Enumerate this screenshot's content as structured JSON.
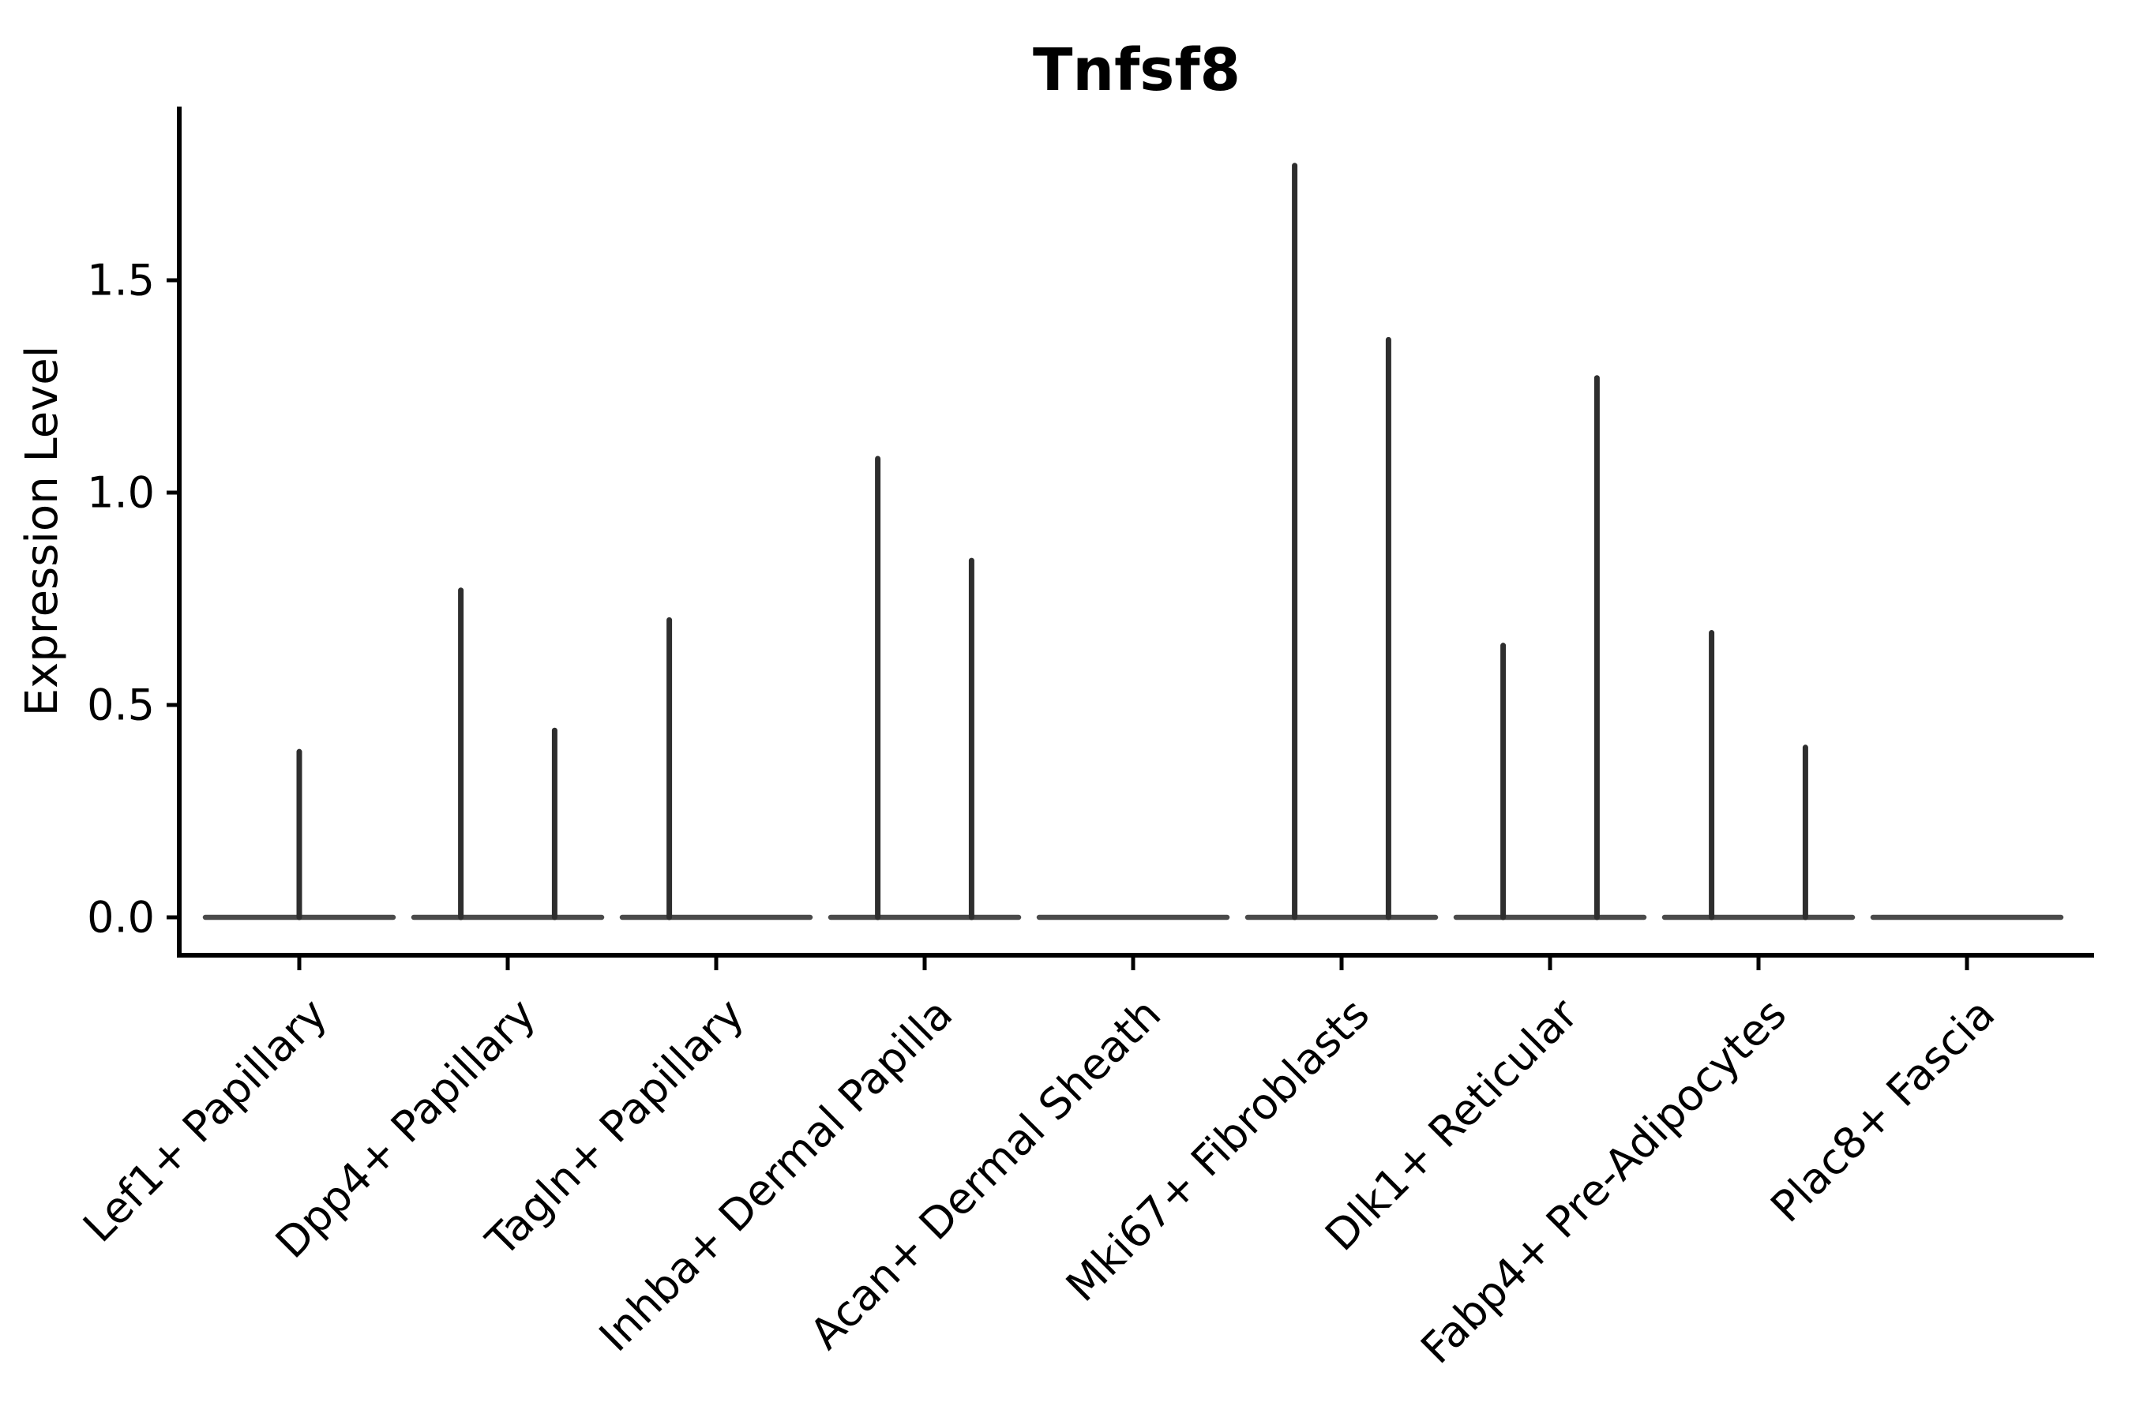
{
  "figure": {
    "background": "#ffffff"
  },
  "chart_data": {
    "type": "violin",
    "title": "Tnfsf8",
    "ylabel": "Expression Level",
    "xlabel": "",
    "legend_position": "none",
    "grid": false,
    "spines": [
      "left",
      "bottom"
    ],
    "ylim": [
      -0.09,
      1.91
    ],
    "yticks": [
      0.0,
      0.5,
      1.0,
      1.5
    ],
    "ytick_labels": [
      "0.0",
      "0.5",
      "1.0",
      "1.5"
    ],
    "categories": [
      "Lef1+ Papillary",
      "Dpp4+ Papillary",
      "Tagln+ Papillary",
      "Inhba+ Dermal Papilla",
      "Acan+ Dermal Sheath",
      "Mki67+ Fibroblasts",
      "Dlk1+ Reticular",
      "Fabp4+ Pre-Adipocytes",
      "Plac8+ Fascia"
    ],
    "violins": [
      {
        "category": "Lef1+ Papillary",
        "baseline_at_zero": true,
        "spikes": [
          {
            "offset": 0.0,
            "max": 0.39
          }
        ]
      },
      {
        "category": "Dpp4+ Papillary",
        "baseline_at_zero": true,
        "spikes": [
          {
            "offset": -0.225,
            "max": 0.77
          },
          {
            "offset": 0.225,
            "max": 0.44
          }
        ]
      },
      {
        "category": "Tagln+ Papillary",
        "baseline_at_zero": true,
        "spikes": [
          {
            "offset": -0.225,
            "max": 0.7
          }
        ]
      },
      {
        "category": "Inhba+ Dermal Papilla",
        "baseline_at_zero": true,
        "spikes": [
          {
            "offset": -0.225,
            "max": 1.08
          },
          {
            "offset": 0.225,
            "max": 0.84
          }
        ]
      },
      {
        "category": "Acan+ Dermal Sheath",
        "baseline_at_zero": true,
        "spikes": []
      },
      {
        "category": "Mki67+ Fibroblasts",
        "baseline_at_zero": true,
        "spikes": [
          {
            "offset": -0.225,
            "max": 1.77
          },
          {
            "offset": 0.225,
            "max": 1.36
          }
        ]
      },
      {
        "category": "Dlk1+ Reticular",
        "baseline_at_zero": true,
        "spikes": [
          {
            "offset": -0.225,
            "max": 0.64
          },
          {
            "offset": 0.225,
            "max": 1.27
          }
        ]
      },
      {
        "category": "Fabp4+ Pre-Adipocytes",
        "baseline_at_zero": true,
        "spikes": [
          {
            "offset": -0.225,
            "max": 0.67
          },
          {
            "offset": 0.225,
            "max": 0.4
          }
        ]
      },
      {
        "category": "Plac8+ Fascia",
        "baseline_at_zero": true,
        "spikes": []
      }
    ],
    "colors": {
      "spike": "#2e2e2e",
      "baseline": "#4a4a4a",
      "axis": "#000000",
      "text": "#000000",
      "background": "#ffffff"
    }
  }
}
